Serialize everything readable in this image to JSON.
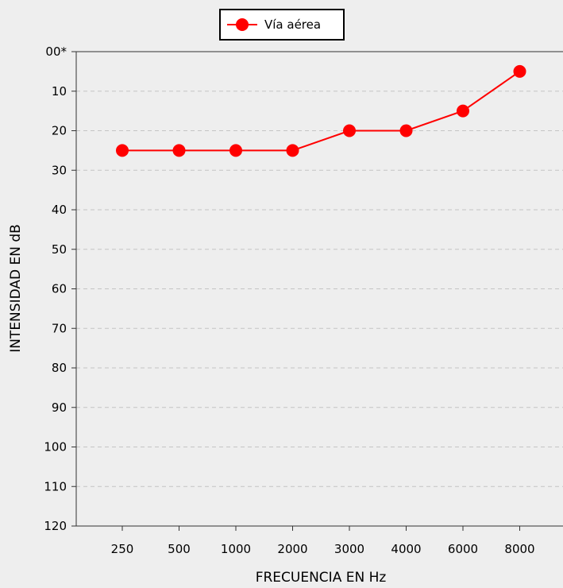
{
  "chart_data": {
    "type": "line",
    "xlabel": "FRECUENCIA EN Hz",
    "ylabel": "INTENSIDAD EN dB",
    "categories": [
      "250",
      "500",
      "1000",
      "2000",
      "3000",
      "4000",
      "6000",
      "8000"
    ],
    "y_ticks": [
      "00*",
      "10",
      "20",
      "30",
      "40",
      "50",
      "60",
      "70",
      "80",
      "90",
      "100",
      "110",
      "120"
    ],
    "ylim": [
      0,
      120
    ],
    "y_inverted": true,
    "grid": "horizontal dashed",
    "legend_position": "top-center",
    "series": [
      {
        "name": "Vía aérea",
        "color": "#ff0000",
        "marker": "circle",
        "values": [
          25,
          25,
          25,
          25,
          20,
          20,
          15,
          5
        ]
      }
    ]
  }
}
